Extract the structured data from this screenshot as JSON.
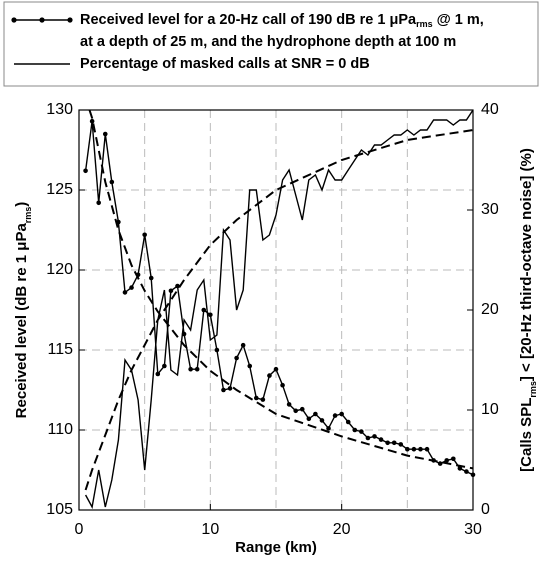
{
  "chart_data": {
    "type": "line",
    "xlabel": [
      [
        "Range (km)"
      ]
    ],
    "ylabel": [
      [
        "Received level (dB re 1 μPa",
        "rms",
        ")"
      ]
    ],
    "y2label": [
      [
        "[Calls SPL",
        "rms",
        "] < [20-Hz third-octave noise] (%)"
      ]
    ],
    "xlim": [
      0,
      30
    ],
    "xticks": [
      0,
      10,
      20,
      30
    ],
    "x_minor_grid": [
      5,
      15,
      25
    ],
    "ylim": [
      105,
      130
    ],
    "yticks": [
      105,
      110,
      115,
      120,
      125,
      130
    ],
    "y2lim": [
      0,
      40
    ],
    "y2ticks": [
      0,
      10,
      20,
      30,
      40
    ],
    "grid": true,
    "x": [
      0.5,
      1,
      1.5,
      2,
      2.5,
      3,
      3.5,
      4,
      4.5,
      5,
      5.5,
      6,
      6.5,
      7,
      7.5,
      8,
      8.5,
      9,
      9.5,
      10,
      10.5,
      11,
      11.5,
      12,
      12.5,
      13,
      13.5,
      14,
      14.5,
      15,
      15.5,
      16,
      16.5,
      17,
      17.5,
      18,
      18.5,
      19,
      19.5,
      20,
      20.5,
      21,
      21.5,
      22,
      22.5,
      23,
      23.5,
      24,
      24.5,
      25,
      25.5,
      26,
      26.5,
      27,
      27.5,
      28,
      28.5,
      29,
      29.5,
      30
    ],
    "series": [
      {
        "name": [
          [
            "Received level for a 20-Hz call of 190 dB re 1 μPa",
            "rms",
            " @ 1 m,"
          ],
          [
            "at a depth of 25 m, and the hydrophone depth at 100 m"
          ]
        ],
        "color": "#000000",
        "marker": "circle",
        "values": [
          126.2,
          129.3,
          124.2,
          128.5,
          125.5,
          123,
          118.6,
          118.9,
          119.7,
          122.2,
          119.5,
          113.5,
          114,
          118.7,
          119,
          116,
          113.8,
          113.8,
          117.5,
          117.2,
          115,
          112.5,
          112.6,
          114.5,
          115.3,
          114,
          112,
          111.9,
          113.4,
          113.8,
          112.8,
          111.6,
          111.2,
          111.3,
          110.7,
          111,
          110.6,
          110.1,
          110.9,
          111,
          110.5,
          110,
          109.9,
          109.5,
          109.6,
          109.4,
          109.2,
          109.2,
          109.1,
          108.8,
          108.8,
          108.8,
          108.8,
          108.1,
          107.9,
          108.1,
          108.2,
          107.6,
          107.4,
          107.2
        ]
      },
      {
        "name": [
          [
            "Percentage of masked calls at SNR = 0 dB"
          ]
        ],
        "color": "#000000",
        "axis": "y2",
        "values": [
          1.5,
          0.3,
          4,
          0.3,
          3,
          7,
          15,
          14,
          11,
          4,
          11,
          19,
          22,
          14,
          13.5,
          19,
          18,
          22,
          23,
          17,
          17.5,
          28,
          27,
          20,
          22,
          32,
          32,
          27,
          27.5,
          29.5,
          33,
          34,
          31.5,
          29,
          33,
          33.5,
          32,
          34,
          33,
          33,
          34,
          35,
          36,
          35.5,
          36.5,
          36.5,
          37,
          37.5,
          37.5,
          38,
          37.5,
          38,
          38,
          39,
          39,
          39,
          38.5,
          39,
          39,
          40
        ]
      },
      {
        "color": "#000000",
        "dash": true,
        "x": [
          0.8,
          1,
          2,
          3,
          4,
          5,
          6,
          8,
          10,
          12,
          15,
          20,
          25,
          30
        ],
        "values": [
          130,
          129.5,
          125.5,
          122.5,
          120.3,
          118.7,
          117.4,
          115.3,
          113.7,
          112.5,
          111,
          109.6,
          108.4,
          107.6
        ]
      },
      {
        "color": "#000000",
        "dash": true,
        "axis": "y2",
        "x": [
          0.5,
          1,
          2,
          3,
          4,
          5,
          6,
          8,
          10,
          12,
          15,
          20,
          25,
          30
        ],
        "values": [
          2,
          4,
          7.5,
          11,
          14,
          16.5,
          19,
          23,
          26.5,
          29,
          32,
          35,
          37,
          38
        ]
      }
    ]
  }
}
